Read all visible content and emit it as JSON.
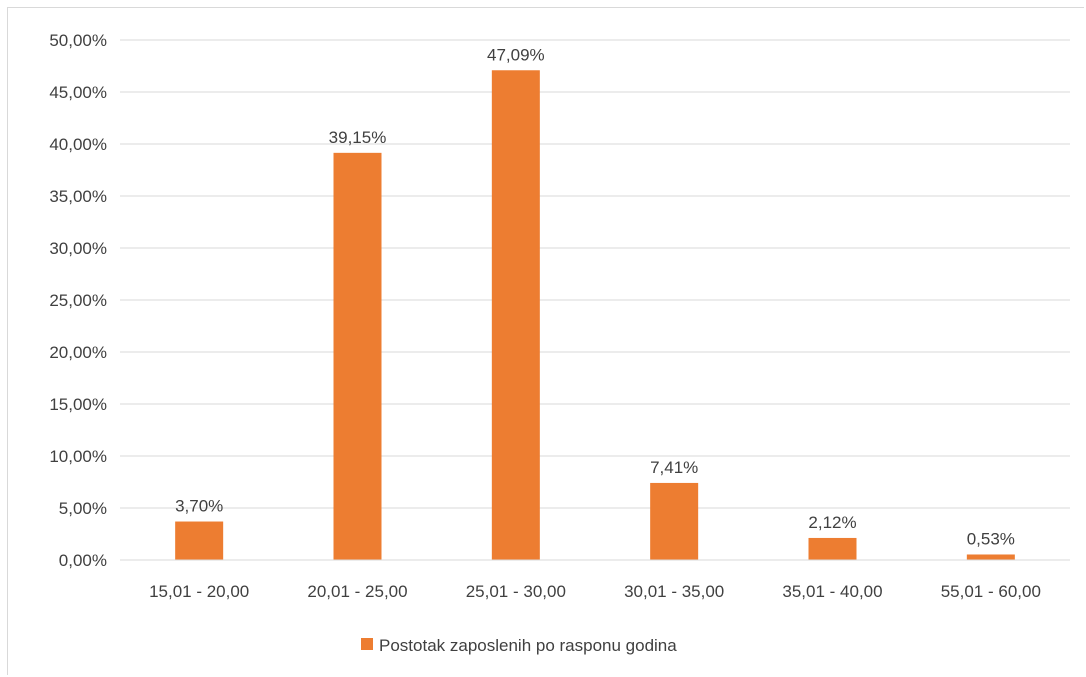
{
  "chart_data": {
    "type": "bar",
    "categories": [
      "15,01 - 20,00",
      "20,01 - 25,00",
      "25,01 - 30,00",
      "30,01 - 35,00",
      "35,01 - 40,00",
      "55,01 - 60,00"
    ],
    "series": [
      {
        "name": "Postotak zaposlenih po rasponu godina",
        "values": [
          3.7,
          39.15,
          47.09,
          7.41,
          2.12,
          0.53
        ],
        "labels": [
          "3,70%",
          "39,15%",
          "47,09%",
          "7,41%",
          "2,12%",
          "0,53%"
        ],
        "color": "#ed7d31"
      }
    ],
    "title": "",
    "xlabel": "",
    "ylabel": "",
    "ylim": [
      0,
      50
    ],
    "yticks": [
      "0,00%",
      "5,00%",
      "10,00%",
      "15,00%",
      "20,00%",
      "25,00%",
      "30,00%",
      "35,00%",
      "40,00%",
      "45,00%",
      "50,00%"
    ],
    "grid": true,
    "legend_position": "bottom",
    "gridline_color": "#d9d9d9",
    "text_color": "#404040"
  }
}
